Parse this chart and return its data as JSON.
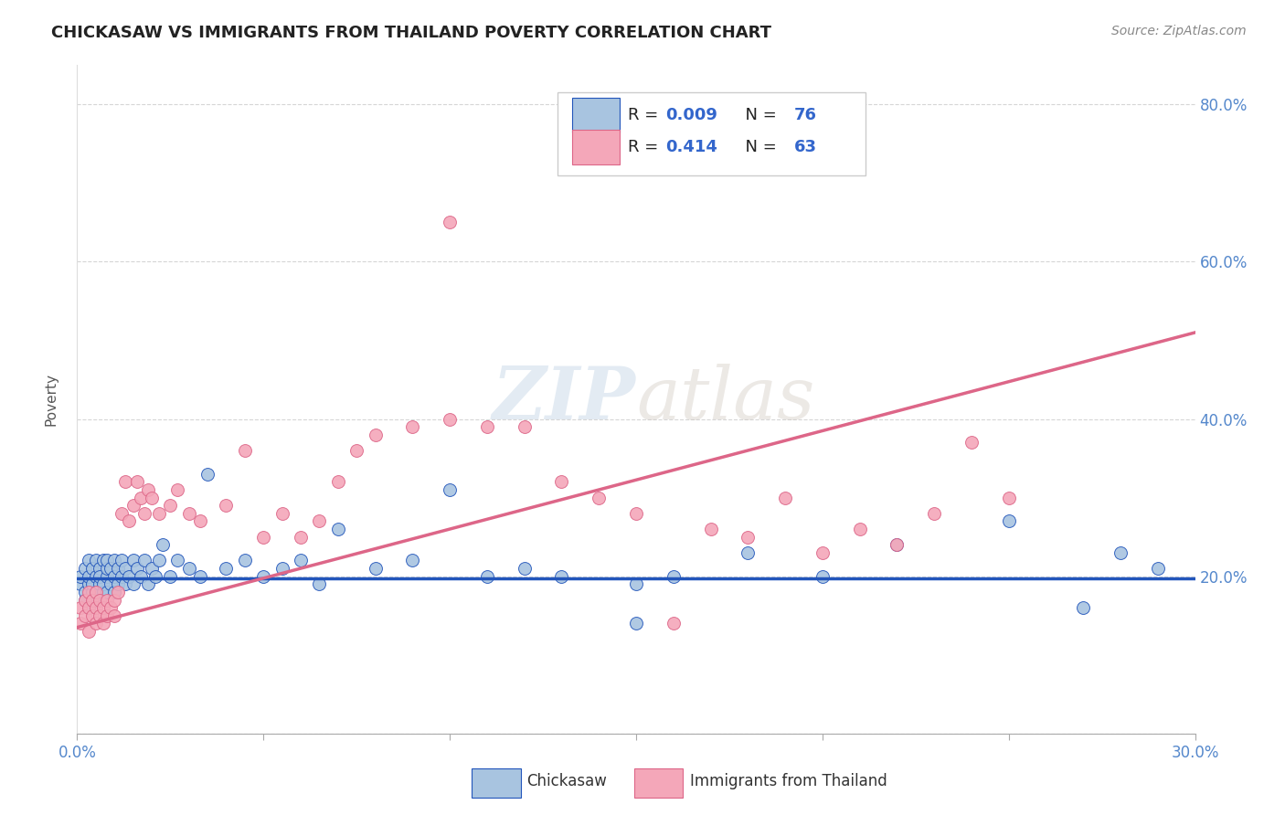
{
  "title": "CHICKASAW VS IMMIGRANTS FROM THAILAND POVERTY CORRELATION CHART",
  "source": "Source: ZipAtlas.com",
  "ylabel": "Poverty",
  "watermark": "ZIPatlas",
  "xlim": [
    0.0,
    0.3
  ],
  "ylim": [
    0.0,
    0.85
  ],
  "color_blue": "#a8c4e0",
  "color_pink": "#f4a7b9",
  "line_blue": "#2255bb",
  "line_pink": "#dd6688",
  "line_dashed_color": "#cc9999",
  "chickasaw_x": [
    0.001,
    0.001,
    0.002,
    0.002,
    0.002,
    0.003,
    0.003,
    0.003,
    0.003,
    0.004,
    0.004,
    0.004,
    0.005,
    0.005,
    0.005,
    0.005,
    0.006,
    0.006,
    0.006,
    0.007,
    0.007,
    0.007,
    0.008,
    0.008,
    0.008,
    0.008,
    0.009,
    0.009,
    0.01,
    0.01,
    0.01,
    0.011,
    0.011,
    0.012,
    0.012,
    0.013,
    0.013,
    0.014,
    0.015,
    0.015,
    0.016,
    0.017,
    0.018,
    0.019,
    0.02,
    0.021,
    0.022,
    0.023,
    0.025,
    0.027,
    0.03,
    0.033,
    0.035,
    0.04,
    0.045,
    0.05,
    0.055,
    0.06,
    0.065,
    0.07,
    0.08,
    0.09,
    0.1,
    0.11,
    0.12,
    0.13,
    0.15,
    0.16,
    0.18,
    0.2,
    0.22,
    0.25,
    0.27,
    0.28,
    0.29,
    0.15
  ],
  "chickasaw_y": [
    0.19,
    0.2,
    0.18,
    0.21,
    0.17,
    0.19,
    0.22,
    0.2,
    0.16,
    0.18,
    0.21,
    0.19,
    0.17,
    0.2,
    0.22,
    0.18,
    0.19,
    0.21,
    0.2,
    0.18,
    0.22,
    0.19,
    0.2,
    0.21,
    0.18,
    0.22,
    0.19,
    0.21,
    0.18,
    0.2,
    0.22,
    0.19,
    0.21,
    0.2,
    0.22,
    0.19,
    0.21,
    0.2,
    0.22,
    0.19,
    0.21,
    0.2,
    0.22,
    0.19,
    0.21,
    0.2,
    0.22,
    0.24,
    0.2,
    0.22,
    0.21,
    0.2,
    0.33,
    0.21,
    0.22,
    0.2,
    0.21,
    0.22,
    0.19,
    0.26,
    0.21,
    0.22,
    0.31,
    0.2,
    0.21,
    0.2,
    0.19,
    0.2,
    0.23,
    0.2,
    0.24,
    0.27,
    0.16,
    0.23,
    0.21,
    0.14
  ],
  "thailand_x": [
    0.001,
    0.001,
    0.002,
    0.002,
    0.003,
    0.003,
    0.003,
    0.004,
    0.004,
    0.005,
    0.005,
    0.005,
    0.006,
    0.006,
    0.007,
    0.007,
    0.008,
    0.008,
    0.009,
    0.01,
    0.01,
    0.011,
    0.012,
    0.013,
    0.014,
    0.015,
    0.016,
    0.017,
    0.018,
    0.019,
    0.02,
    0.022,
    0.025,
    0.027,
    0.03,
    0.033,
    0.04,
    0.045,
    0.05,
    0.055,
    0.06,
    0.065,
    0.07,
    0.075,
    0.08,
    0.09,
    0.1,
    0.11,
    0.12,
    0.13,
    0.14,
    0.15,
    0.16,
    0.17,
    0.18,
    0.19,
    0.2,
    0.21,
    0.22,
    0.23,
    0.24,
    0.25,
    0.1
  ],
  "thailand_y": [
    0.14,
    0.16,
    0.15,
    0.17,
    0.13,
    0.16,
    0.18,
    0.15,
    0.17,
    0.14,
    0.16,
    0.18,
    0.15,
    0.17,
    0.14,
    0.16,
    0.15,
    0.17,
    0.16,
    0.15,
    0.17,
    0.18,
    0.28,
    0.32,
    0.27,
    0.29,
    0.32,
    0.3,
    0.28,
    0.31,
    0.3,
    0.28,
    0.29,
    0.31,
    0.28,
    0.27,
    0.29,
    0.36,
    0.25,
    0.28,
    0.25,
    0.27,
    0.32,
    0.36,
    0.38,
    0.39,
    0.4,
    0.39,
    0.39,
    0.32,
    0.3,
    0.28,
    0.14,
    0.26,
    0.25,
    0.3,
    0.23,
    0.26,
    0.24,
    0.28,
    0.37,
    0.3,
    0.65
  ],
  "blue_line_slope": 0.0,
  "blue_line_intercept": 0.197,
  "pink_line_x0": 0.0,
  "pink_line_y0": 0.135,
  "pink_line_x1": 0.2,
  "pink_line_y1": 0.385,
  "dashed_line_x0": 0.18,
  "dashed_line_y0": 0.363,
  "dashed_line_x1": 0.3,
  "dashed_line_y1": 0.513
}
